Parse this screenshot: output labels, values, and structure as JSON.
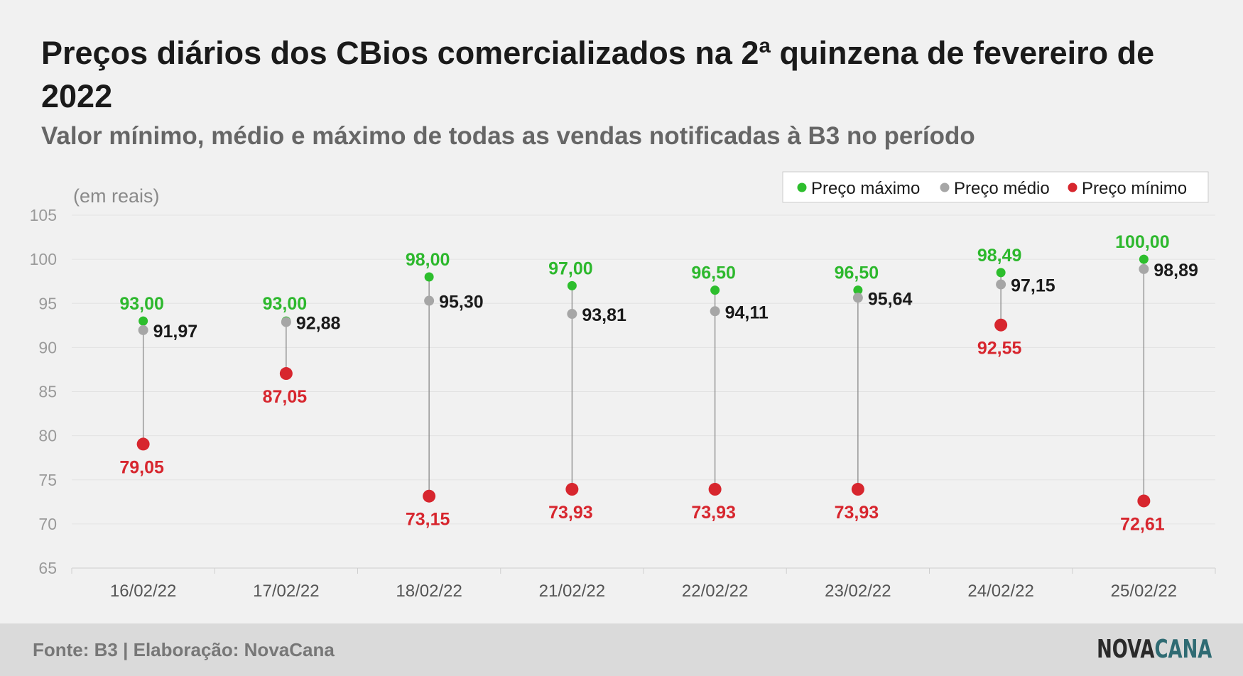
{
  "header": {
    "title": "Preços diários dos CBios comercializados na 2ª quinzena de fevereiro de 2022",
    "subtitle": "Valor mínimo, médio e máximo de todas as vendas notificadas à B3 no período"
  },
  "footer": {
    "source": "Fonte: B3 | Elaboração: NovaCana",
    "logo_part1": "NOVA",
    "logo_part2": "CANA"
  },
  "colors": {
    "max": "#2dbe2d",
    "avg": "#a6a6a6",
    "min": "#d7262e",
    "max_label": "#2db82d",
    "avg_label": "#1a1a1a",
    "min_label": "#d7262e"
  },
  "chart_data": {
    "type": "scatter",
    "title": "Preços diários dos CBios comercializados na 2ª quinzena de fevereiro de 2022",
    "subtitle": "Valor mínimo, médio e máximo de todas as vendas notificadas à B3 no período",
    "ylabel": "(em reais)",
    "ylim": [
      65,
      105
    ],
    "yticks": [
      65,
      70,
      75,
      80,
      85,
      90,
      95,
      100,
      105
    ],
    "grid": true,
    "legend_position": "top-right",
    "categories": [
      "16/02/22",
      "17/02/22",
      "18/02/22",
      "21/02/22",
      "22/02/22",
      "23/02/22",
      "24/02/22",
      "25/02/22"
    ],
    "series": [
      {
        "name": "Preço máximo",
        "values": [
          93.0,
          93.0,
          98.0,
          97.0,
          96.5,
          96.5,
          98.49,
          100.0
        ],
        "labels": [
          "93,00",
          "93,00",
          "98,00",
          "97,00",
          "96,50",
          "96,50",
          "98,49",
          "100,00"
        ]
      },
      {
        "name": "Preço médio",
        "values": [
          91.97,
          92.88,
          95.3,
          93.81,
          94.11,
          95.64,
          97.15,
          98.89
        ],
        "labels": [
          "91,97",
          "92,88",
          "95,30",
          "93,81",
          "94,11",
          "95,64",
          "97,15",
          "98,89"
        ]
      },
      {
        "name": "Preço mínimo",
        "values": [
          79.05,
          87.05,
          73.15,
          73.93,
          73.93,
          73.93,
          92.55,
          72.61
        ],
        "labels": [
          "79,05",
          "87,05",
          "73,15",
          "73,93",
          "73,93",
          "73,93",
          "92,55",
          "72,61"
        ]
      }
    ]
  }
}
